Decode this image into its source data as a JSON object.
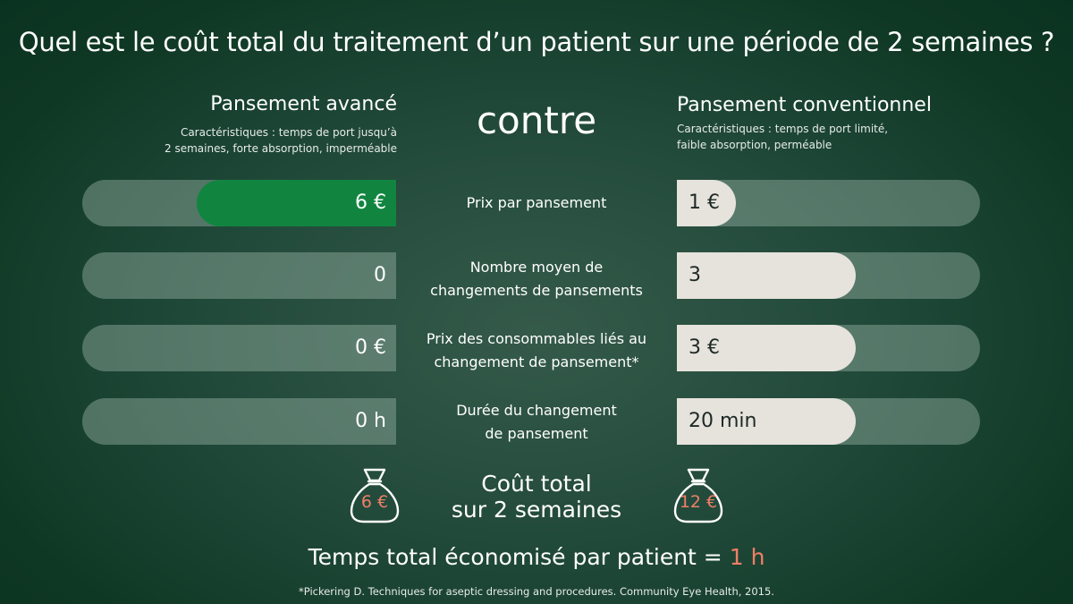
{
  "title": "Quel est le coût total du traitement d’un patient sur une période de 2 semaines ?",
  "left": {
    "heading": "Pansement avancé",
    "desc_line1": "Caractéristiques : temps de port jusqu’à",
    "desc_line2": "2 semaines, forte absorption, imperméable"
  },
  "vs": "contre",
  "right": {
    "heading": "Pansement conventionnel",
    "desc_line1": "Caractéristiques : temps de port limité,",
    "desc_line2": "faible absorption, perméable"
  },
  "rows": [
    {
      "label_line1": "Prix par pansement",
      "label_line2": "",
      "left_value": "6 €",
      "right_value": "1 €"
    },
    {
      "label_line1": "Nombre moyen de",
      "label_line2": "changements de pansements",
      "left_value": "0",
      "right_value": "3"
    },
    {
      "label_line1": "Prix des consommables liés au",
      "label_line2": "changement de pansement*",
      "left_value": "0 €",
      "right_value": "3 €"
    },
    {
      "label_line1": "Durée du changement",
      "label_line2": "de pansement",
      "left_value": "0 h",
      "right_value": "20 min"
    }
  ],
  "total": {
    "line1": "Coût total",
    "line2": "sur 2 semaines",
    "left_value": "6 €",
    "right_value": "12 €"
  },
  "saved": {
    "text": "Temps total économisé par patient = ",
    "value": "1 h"
  },
  "footnote": "*Pickering D. Techniques for aseptic dressing and procedures. Community Eye Health, 2015.",
  "colors": {
    "accent_green": "#118540",
    "highlight_salmon": "#f07f66",
    "light_fill": "#e6e2dc"
  }
}
